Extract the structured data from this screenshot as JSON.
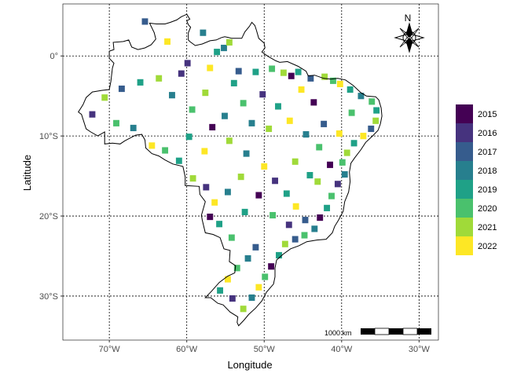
{
  "chart_data": {
    "type": "heatmap",
    "xlabel": "Longitude",
    "ylabel": "Latitude",
    "xlim": [
      -76,
      -27.5
    ],
    "ylim": [
      -35.5,
      6.5
    ],
    "x_ticks": [
      {
        "value": -70,
        "label": "70°W"
      },
      {
        "value": -60,
        "label": "60°W"
      },
      {
        "value": -50,
        "label": "50°W"
      },
      {
        "value": -40,
        "label": "40°W"
      },
      {
        "value": -30,
        "label": "30°W"
      }
    ],
    "y_ticks": [
      {
        "value": 0,
        "label": "0°"
      },
      {
        "value": -10,
        "label": "10°S"
      },
      {
        "value": -20,
        "label": "20°S"
      },
      {
        "value": -30,
        "label": "30°S"
      }
    ],
    "grid": true,
    "legend": {
      "position": "right",
      "items": [
        {
          "label": "2015",
          "color": "#440154"
        },
        {
          "label": "2016",
          "color": "#46337E"
        },
        {
          "label": "2017",
          "color": "#365C8D"
        },
        {
          "label": "2018",
          "color": "#277F8E"
        },
        {
          "label": "2019",
          "color": "#1FA187"
        },
        {
          "label": "2020",
          "color": "#4AC16D"
        },
        {
          "label": "2021",
          "color": "#A0DA39"
        },
        {
          "label": "2022",
          "color": "#FDE725"
        }
      ]
    },
    "scale_bar_label": "1000 km",
    "north_arrow_label": "N",
    "outline": [
      [
        -60.0,
        5.2
      ],
      [
        -59.6,
        4.6
      ],
      [
        -60.0,
        4.4
      ],
      [
        -59.8,
        3.9
      ],
      [
        -59.5,
        3.6
      ],
      [
        -59.8,
        2.9
      ],
      [
        -59.8,
        2.0
      ],
      [
        -59.6,
        1.8
      ],
      [
        -58.9,
        1.3
      ],
      [
        -58.0,
        1.5
      ],
      [
        -57.0,
        1.9
      ],
      [
        -56.2,
        2.0
      ],
      [
        -55.5,
        2.3
      ],
      [
        -55.1,
        2.4
      ],
      [
        -54.6,
        2.3
      ],
      [
        -54.2,
        2.2
      ],
      [
        -53.6,
        2.2
      ],
      [
        -52.9,
        2.2
      ],
      [
        -52.5,
        3.0
      ],
      [
        -51.9,
        3.7
      ],
      [
        -51.6,
        4.2
      ],
      [
        -51.2,
        3.8
      ],
      [
        -51.0,
        3.2
      ],
      [
        -50.7,
        2.2
      ],
      [
        -50.0,
        1.6
      ],
      [
        -49.9,
        1.0
      ],
      [
        -50.3,
        0.5
      ],
      [
        -49.6,
        0.0
      ],
      [
        -48.5,
        -0.6
      ],
      [
        -48.0,
        -0.8
      ],
      [
        -47.0,
        -0.7
      ],
      [
        -45.6,
        -1.3
      ],
      [
        -44.6,
        -1.9
      ],
      [
        -44.3,
        -2.5
      ],
      [
        -43.5,
        -2.4
      ],
      [
        -42.3,
        -2.8
      ],
      [
        -41.4,
        -2.9
      ],
      [
        -40.5,
        -2.8
      ],
      [
        -39.5,
        -3.0
      ],
      [
        -38.5,
        -3.7
      ],
      [
        -37.5,
        -4.6
      ],
      [
        -36.8,
        -5.0
      ],
      [
        -35.6,
        -5.1
      ],
      [
        -35.2,
        -5.5
      ],
      [
        -34.9,
        -6.5
      ],
      [
        -34.8,
        -7.5
      ],
      [
        -35.0,
        -8.5
      ],
      [
        -35.3,
        -9.3
      ],
      [
        -36.0,
        -10.0
      ],
      [
        -36.9,
        -10.8
      ],
      [
        -37.5,
        -11.7
      ],
      [
        -38.3,
        -12.7
      ],
      [
        -38.8,
        -13.4
      ],
      [
        -39.0,
        -14.5
      ],
      [
        -38.9,
        -15.7
      ],
      [
        -39.1,
        -17.0
      ],
      [
        -39.6,
        -18.2
      ],
      [
        -39.8,
        -19.4
      ],
      [
        -40.4,
        -20.5
      ],
      [
        -40.9,
        -21.3
      ],
      [
        -41.2,
        -22.1
      ],
      [
        -42.0,
        -22.9
      ],
      [
        -43.2,
        -23.0
      ],
      [
        -44.5,
        -23.2
      ],
      [
        -45.5,
        -23.7
      ],
      [
        -46.6,
        -24.1
      ],
      [
        -47.6,
        -24.8
      ],
      [
        -48.4,
        -25.5
      ],
      [
        -48.6,
        -26.5
      ],
      [
        -48.6,
        -27.6
      ],
      [
        -48.8,
        -28.5
      ],
      [
        -49.7,
        -29.5
      ],
      [
        -50.3,
        -30.6
      ],
      [
        -51.1,
        -31.5
      ],
      [
        -52.0,
        -32.3
      ],
      [
        -52.6,
        -33.0
      ],
      [
        -53.3,
        -33.7
      ],
      [
        -53.5,
        -33.3
      ],
      [
        -53.4,
        -32.6
      ],
      [
        -54.4,
        -32.0
      ],
      [
        -55.3,
        -31.1
      ],
      [
        -56.0,
        -30.9
      ],
      [
        -56.9,
        -30.2
      ],
      [
        -57.6,
        -30.2
      ],
      [
        -56.8,
        -29.4
      ],
      [
        -55.8,
        -28.3
      ],
      [
        -54.7,
        -27.5
      ],
      [
        -53.8,
        -27.1
      ],
      [
        -53.7,
        -26.2
      ],
      [
        -54.5,
        -25.7
      ],
      [
        -54.4,
        -24.3
      ],
      [
        -55.2,
        -24.1
      ],
      [
        -55.7,
        -22.7
      ],
      [
        -56.6,
        -22.3
      ],
      [
        -57.6,
        -22.1
      ],
      [
        -58.0,
        -20.5
      ],
      [
        -58.1,
        -19.9
      ],
      [
        -57.6,
        -18.2
      ],
      [
        -58.3,
        -17.3
      ],
      [
        -58.4,
        -16.3
      ],
      [
        -60.2,
        -16.2
      ],
      [
        -60.2,
        -15.1
      ],
      [
        -60.5,
        -13.8
      ],
      [
        -61.8,
        -13.5
      ],
      [
        -62.8,
        -13.0
      ],
      [
        -63.6,
        -12.5
      ],
      [
        -64.5,
        -12.2
      ],
      [
        -65.3,
        -11.5
      ],
      [
        -65.4,
        -10.5
      ],
      [
        -65.8,
        -9.8
      ],
      [
        -66.6,
        -9.9
      ],
      [
        -68.0,
        -10.6
      ],
      [
        -68.6,
        -11.0
      ],
      [
        -69.6,
        -10.9
      ],
      [
        -70.6,
        -11.0
      ],
      [
        -70.6,
        -9.5
      ],
      [
        -71.5,
        -10.0
      ],
      [
        -72.4,
        -9.5
      ],
      [
        -73.0,
        -9.1
      ],
      [
        -73.6,
        -7.3
      ],
      [
        -74.0,
        -7.0
      ],
      [
        -73.4,
        -6.1
      ],
      [
        -73.0,
        -5.2
      ],
      [
        -72.2,
        -4.5
      ],
      [
        -71.0,
        -4.3
      ],
      [
        -70.0,
        -4.2
      ],
      [
        -69.8,
        -3.2
      ],
      [
        -69.6,
        -1.5
      ],
      [
        -69.4,
        -0.9
      ],
      [
        -70.0,
        -0.3
      ],
      [
        -70.0,
        0.6
      ],
      [
        -69.4,
        0.8
      ],
      [
        -69.5,
        1.7
      ],
      [
        -68.2,
        1.8
      ],
      [
        -67.5,
        2.0
      ],
      [
        -67.1,
        1.1
      ],
      [
        -66.3,
        0.8
      ],
      [
        -65.4,
        1.0
      ],
      [
        -64.6,
        1.4
      ],
      [
        -64.0,
        2.1
      ],
      [
        -64.2,
        2.9
      ],
      [
        -64.8,
        4.1
      ],
      [
        -63.9,
        4.0
      ],
      [
        -62.8,
        4.0
      ],
      [
        -62.1,
        4.2
      ],
      [
        -61.3,
        4.5
      ],
      [
        -60.7,
        4.9
      ],
      [
        -60.0,
        5.2
      ]
    ],
    "cell_size_deg": 0.8,
    "cells": [
      [
        -65.4,
        4.3,
        2017
      ],
      [
        -57.9,
        2.9,
        2018
      ],
      [
        -62.5,
        1.8,
        2022
      ],
      [
        -55.2,
        1.0,
        2018
      ],
      [
        -54.5,
        1.7,
        2021
      ],
      [
        -56.1,
        0.5,
        2019
      ],
      [
        -59.9,
        -0.9,
        2016
      ],
      [
        -57.0,
        -1.5,
        2022
      ],
      [
        -60.7,
        -2.2,
        2016
      ],
      [
        -53.3,
        -1.9,
        2017
      ],
      [
        -51.1,
        -2.0,
        2019
      ],
      [
        -49.0,
        -1.6,
        2020
      ],
      [
        -47.5,
        -2.1,
        2021
      ],
      [
        -45.6,
        -2.0,
        2019
      ],
      [
        -46.5,
        -2.5,
        2015
      ],
      [
        -44.0,
        -2.8,
        2017
      ],
      [
        -42.2,
        -2.6,
        2021
      ],
      [
        -41.1,
        -3.1,
        2020
      ],
      [
        -40.2,
        -3.5,
        2022
      ],
      [
        -38.9,
        -4.2,
        2019
      ],
      [
        -37.5,
        -5.0,
        2018
      ],
      [
        -36.1,
        -5.7,
        2020
      ],
      [
        -35.5,
        -6.8,
        2019
      ],
      [
        -35.6,
        -8.1,
        2021
      ],
      [
        -36.2,
        -9.1,
        2017
      ],
      [
        -37.2,
        -10.0,
        2022
      ],
      [
        -38.4,
        -10.9,
        2019
      ],
      [
        -39.3,
        -12.1,
        2021
      ],
      [
        -39.9,
        -13.3,
        2020
      ],
      [
        -39.6,
        -14.8,
        2018
      ],
      [
        -40.5,
        -16.0,
        2016
      ],
      [
        -41.3,
        -17.5,
        2020
      ],
      [
        -41.9,
        -19.0,
        2019
      ],
      [
        -42.8,
        -20.2,
        2015
      ],
      [
        -43.5,
        -21.6,
        2018
      ],
      [
        -44.8,
        -22.4,
        2020
      ],
      [
        -46.0,
        -22.9,
        2017
      ],
      [
        -47.3,
        -23.5,
        2021
      ],
      [
        -48.1,
        -24.9,
        2019
      ],
      [
        -49.1,
        -26.3,
        2015
      ],
      [
        -49.9,
        -27.6,
        2020
      ],
      [
        -50.7,
        -28.9,
        2022
      ],
      [
        -51.6,
        -30.2,
        2018
      ],
      [
        -52.7,
        -31.6,
        2021
      ],
      [
        -54.1,
        -30.3,
        2016
      ],
      [
        -55.7,
        -29.3,
        2019
      ],
      [
        -54.7,
        -27.9,
        2022
      ],
      [
        -53.5,
        -26.5,
        2020
      ],
      [
        -52.1,
        -25.3,
        2018
      ],
      [
        -51.1,
        -23.9,
        2017
      ],
      [
        -54.2,
        -22.7,
        2020
      ],
      [
        -55.8,
        -21.0,
        2019
      ],
      [
        -57.0,
        -20.1,
        2015
      ],
      [
        -56.4,
        -18.3,
        2022
      ],
      [
        -57.5,
        -16.4,
        2016
      ],
      [
        -59.2,
        -15.3,
        2021
      ],
      [
        -61.0,
        -13.1,
        2019
      ],
      [
        -62.8,
        -11.8,
        2020
      ],
      [
        -64.5,
        -11.2,
        2022
      ],
      [
        -66.9,
        -9.0,
        2018
      ],
      [
        -69.1,
        -8.4,
        2020
      ],
      [
        -72.2,
        -7.3,
        2016
      ],
      [
        -70.6,
        -5.2,
        2021
      ],
      [
        -68.4,
        -4.1,
        2017
      ],
      [
        -66.0,
        -3.3,
        2019
      ],
      [
        -63.6,
        -2.8,
        2021
      ],
      [
        -61.9,
        -4.9,
        2018
      ],
      [
        -59.3,
        -6.7,
        2020
      ],
      [
        -56.7,
        -8.9,
        2015
      ],
      [
        -54.5,
        -10.6,
        2021
      ],
      [
        -52.3,
        -12.2,
        2018
      ],
      [
        -50.0,
        -13.8,
        2022
      ],
      [
        -48.6,
        -15.6,
        2016
      ],
      [
        -47.1,
        -17.2,
        2019
      ],
      [
        -45.9,
        -18.8,
        2022
      ],
      [
        -44.7,
        -20.5,
        2017
      ],
      [
        -43.1,
        -15.7,
        2021
      ],
      [
        -41.5,
        -13.6,
        2015
      ],
      [
        -42.9,
        -11.4,
        2020
      ],
      [
        -44.6,
        -9.8,
        2018
      ],
      [
        -46.7,
        -8.1,
        2022
      ],
      [
        -48.2,
        -6.3,
        2019
      ],
      [
        -50.2,
        -4.8,
        2016
      ],
      [
        -52.7,
        -5.9,
        2020
      ],
      [
        -55.1,
        -7.5,
        2018
      ],
      [
        -57.7,
        -11.9,
        2022
      ],
      [
        -59.7,
        -10.1,
        2019
      ],
      [
        -53.0,
        -15.1,
        2021
      ],
      [
        -50.7,
        -17.4,
        2015
      ],
      [
        -48.9,
        -19.9,
        2020
      ],
      [
        -46.8,
        -21.1,
        2016
      ],
      [
        -52.5,
        -19.5,
        2019
      ],
      [
        -54.7,
        -17.0,
        2018
      ],
      [
        -46.0,
        -13.2,
        2021
      ],
      [
        -44.1,
        -14.9,
        2019
      ],
      [
        -42.3,
        -8.5,
        2017
      ],
      [
        -40.3,
        -9.7,
        2022
      ],
      [
        -38.7,
        -7.1,
        2020
      ],
      [
        -43.6,
        -5.8,
        2015
      ],
      [
        -45.2,
        -4.2,
        2022
      ],
      [
        -49.4,
        -9.1,
        2021
      ],
      [
        -51.6,
        -8.4,
        2018
      ],
      [
        -53.9,
        -3.4,
        2019
      ],
      [
        -57.6,
        -4.6,
        2021
      ]
    ]
  }
}
